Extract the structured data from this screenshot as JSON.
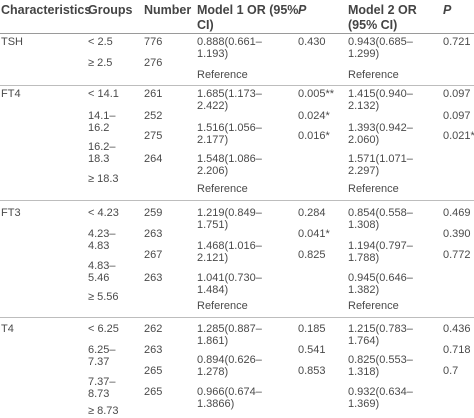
{
  "header": {
    "characteristics": "Characteristics",
    "groups": "Groups",
    "number": "Number",
    "model1_line1": "Model 1 OR (95%",
    "model1_line2": "CI)",
    "p1": "P",
    "model2_line1": "Model 2 OR",
    "model2_line2": "(95% CI)",
    "p2": "P"
  },
  "sections": [
    {
      "name": "TSH",
      "groups": [
        {
          "label": "< 2.5",
          "number": "776",
          "or1": [
            "0.888(0.661–",
            "1.193)"
          ],
          "p1": "0.430",
          "or2": [
            "0.943(0.685–",
            "1.299)"
          ],
          "p2": "0.721"
        },
        {
          "label": "≥ 2.5",
          "number": "276",
          "or1": [
            "Reference"
          ],
          "p1": "",
          "or2": [
            "Reference"
          ],
          "p2": ""
        }
      ]
    },
    {
      "name": "FT4",
      "groups": [
        {
          "label": "< 14.1",
          "number": "261",
          "or1": [
            "1.685(1.173–",
            "2.422)"
          ],
          "p1": "0.005**",
          "or2": [
            "1.415(0.940–",
            "2.132)"
          ],
          "p2": "0.097"
        },
        {
          "label": "14.1–16.2",
          "number": "252",
          "or1": [
            "1.516(1.056–",
            "2.177)"
          ],
          "p1": "0.024*",
          "or2": [
            "1.393(0.942–",
            "2.060)"
          ],
          "p2": "0.097"
        },
        {
          "label": "16.2–18.3",
          "number": "275",
          "or1": [
            "1.548(1.086–",
            "2.206)"
          ],
          "p1": "0.016*",
          "or2": [
            "1.571(1.071–",
            "2.297)"
          ],
          "p2": "0.021*"
        },
        {
          "label": "≥ 18.3",
          "number": "264",
          "or1": [
            "Reference"
          ],
          "p1": "",
          "or2": [
            "Reference"
          ],
          "p2": ""
        }
      ]
    },
    {
      "name": "FT3",
      "groups": [
        {
          "label": "< 4.23",
          "number": "259",
          "or1": [
            "1.219(0.849–",
            "1.751)"
          ],
          "p1": "0.284",
          "or2": [
            "0.854(0.558–",
            "1.308)"
          ],
          "p2": "0.469"
        },
        {
          "label": "4.23–4.83",
          "number": "263",
          "or1": [
            "1.468(1.016–",
            "2.121)"
          ],
          "p1": "0.041*",
          "or2": [
            "1.194(0.797–",
            "1.788)"
          ],
          "p2": "0.390"
        },
        {
          "label": "4.83–5.46",
          "number": "267",
          "or1": [
            "1.041(0.730–",
            "1.484)"
          ],
          "p1": "0.825",
          "or2": [
            "0.945(0.646–",
            "1.382)"
          ],
          "p2": "0.772"
        },
        {
          "label": "≥ 5.56",
          "number": "263",
          "or1": [
            "Reference"
          ],
          "p1": "",
          "or2": [
            "Reference"
          ],
          "p2": ""
        }
      ]
    },
    {
      "name": "T4",
      "groups": [
        {
          "label": "< 6.25",
          "number": "262",
          "or1": [
            "1.285(0.887–",
            "1.861)"
          ],
          "p1": "0.185",
          "or2": [
            "1.215(0.783–",
            "1.764)"
          ],
          "p2": "0.436"
        },
        {
          "label": "6.25–7.37",
          "number": "263",
          "or1": [
            "0.894(0.626–",
            "1.278)"
          ],
          "p1": "0.541",
          "or2": [
            "0.825(0.553–",
            "1.318)"
          ],
          "p2": "0.718"
        },
        {
          "label": "7.37–8.73",
          "number": "265",
          "or1": [
            "0.966(0.674–",
            "1.3866)"
          ],
          "p1": "0.853",
          "or2": [
            "0.932(0.634–",
            "1.369)"
          ],
          "p2": "0.7"
        },
        {
          "label": "≥ 8.73",
          "number": "",
          "or1": [],
          "p1": "",
          "or2": [],
          "p2": ""
        }
      ]
    }
  ]
}
